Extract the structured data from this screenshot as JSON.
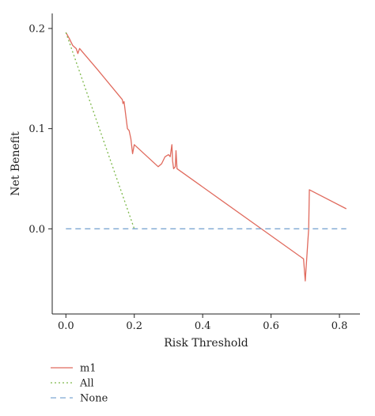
{
  "chart_data": {
    "type": "line",
    "xlabel": "Risk Threshold",
    "ylabel": "Net Benefit",
    "xlim": [
      -0.04,
      0.86
    ],
    "ylim": [
      -0.085,
      0.215
    ],
    "x_ticks": [
      {
        "value": 0.0,
        "label": "0.0"
      },
      {
        "value": 0.2,
        "label": "0.2"
      },
      {
        "value": 0.4,
        "label": "0.4"
      },
      {
        "value": 0.6,
        "label": "0.6"
      },
      {
        "value": 0.8,
        "label": "0.8"
      }
    ],
    "y_ticks": [
      {
        "value": 0.0,
        "label": "0.0"
      },
      {
        "value": 0.1,
        "label": "0.1"
      },
      {
        "value": 0.2,
        "label": "0.2"
      }
    ],
    "grid": false,
    "legend_position": "bottom-left",
    "series": [
      {
        "name": "m1",
        "color": "#e06a5d",
        "style": "solid",
        "points": [
          [
            0.0,
            0.196
          ],
          [
            0.01,
            0.19
          ],
          [
            0.02,
            0.183
          ],
          [
            0.03,
            0.18
          ],
          [
            0.035,
            0.175
          ],
          [
            0.04,
            0.18
          ],
          [
            0.05,
            0.176
          ],
          [
            0.09,
            0.16
          ],
          [
            0.165,
            0.129
          ],
          [
            0.167,
            0.125
          ],
          [
            0.17,
            0.127
          ],
          [
            0.18,
            0.1
          ],
          [
            0.185,
            0.098
          ],
          [
            0.19,
            0.09
          ],
          [
            0.195,
            0.075
          ],
          [
            0.2,
            0.084
          ],
          [
            0.27,
            0.062
          ],
          [
            0.28,
            0.065
          ],
          [
            0.29,
            0.072
          ],
          [
            0.3,
            0.074
          ],
          [
            0.305,
            0.072
          ],
          [
            0.31,
            0.084
          ],
          [
            0.312,
            0.068
          ],
          [
            0.315,
            0.06
          ],
          [
            0.32,
            0.062
          ],
          [
            0.322,
            0.078
          ],
          [
            0.325,
            0.06
          ],
          [
            0.695,
            -0.03
          ],
          [
            0.7,
            -0.052
          ],
          [
            0.71,
            0.0
          ],
          [
            0.712,
            0.039
          ],
          [
            0.82,
            0.02
          ]
        ]
      },
      {
        "name": "All",
        "color": "#7db84a",
        "style": "dotted",
        "points": [
          [
            0.0,
            0.196
          ],
          [
            0.2,
            0.0
          ]
        ]
      },
      {
        "name": "None",
        "color": "#7da7d3",
        "style": "dashed",
        "points": [
          [
            0.0,
            0.0
          ],
          [
            0.82,
            0.0
          ]
        ]
      }
    ]
  }
}
